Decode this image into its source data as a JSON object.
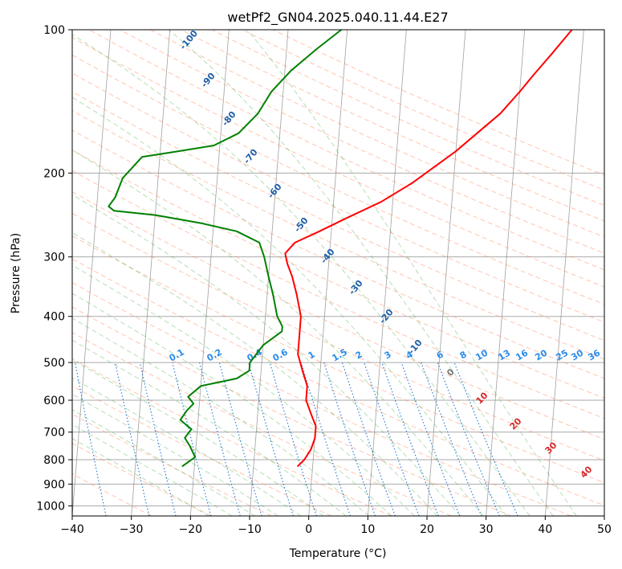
{
  "chart_data": {
    "type": "line",
    "title": "wetPf2_GN04.2025.040.11.44.E27",
    "xlabel": "Temperature (°C)",
    "ylabel": "Pressure (hPa)",
    "xlim": [
      -40,
      50
    ],
    "ylim": [
      1050,
      100
    ],
    "y_scale": "log",
    "x_ticks": [
      -40,
      -30,
      -20,
      -10,
      0,
      10,
      20,
      30,
      40,
      50
    ],
    "x_tick_labels": [
      "−40",
      "−30",
      "−20",
      "−10",
      "0",
      "10",
      "20",
      "30",
      "40",
      "50"
    ],
    "y_ticks": [
      100,
      200,
      300,
      400,
      500,
      600,
      700,
      800,
      900,
      1000
    ],
    "y_tick_labels": [
      "100",
      "200",
      "300",
      "400",
      "500",
      "600",
      "700",
      "800",
      "900",
      "1000"
    ],
    "grid": true,
    "series": [
      {
        "color": "#ff0000",
        "points": [
          [
            -2.5,
            825
          ],
          [
            -1.5,
            800
          ],
          [
            -0.5,
            760
          ],
          [
            0,
            720
          ],
          [
            0,
            680
          ],
          [
            -1,
            640
          ],
          [
            -2,
            600
          ],
          [
            -2,
            560
          ],
          [
            -3,
            520
          ],
          [
            -4,
            480
          ],
          [
            -4,
            440
          ],
          [
            -4,
            400
          ],
          [
            -5,
            360
          ],
          [
            -6,
            330
          ],
          [
            -7,
            310
          ],
          [
            -7.5,
            295
          ],
          [
            -6,
            280
          ],
          [
            -2,
            265
          ],
          [
            2,
            250
          ],
          [
            8,
            230
          ],
          [
            13,
            210
          ],
          [
            20,
            180
          ],
          [
            27,
            150
          ],
          [
            30,
            135
          ],
          [
            32,
            125
          ],
          [
            35,
            112
          ],
          [
            38,
            100
          ]
        ]
      },
      {
        "color": "#008000",
        "points": [
          [
            -22,
            825
          ],
          [
            -20,
            790
          ],
          [
            -21,
            750
          ],
          [
            -22,
            720
          ],
          [
            -21,
            690
          ],
          [
            -23,
            660
          ],
          [
            -22,
            630
          ],
          [
            -21,
            610
          ],
          [
            -22,
            590
          ],
          [
            -20,
            560
          ],
          [
            -17,
            550
          ],
          [
            -14,
            540
          ],
          [
            -12,
            520
          ],
          [
            -12,
            500
          ],
          [
            -10,
            460
          ],
          [
            -7,
            430
          ],
          [
            -7,
            420
          ],
          [
            -8,
            400
          ],
          [
            -9,
            360
          ],
          [
            -10,
            330
          ],
          [
            -11,
            300
          ],
          [
            -12,
            280
          ],
          [
            -16,
            265
          ],
          [
            -22,
            255
          ],
          [
            -30,
            245
          ],
          [
            -37,
            240
          ],
          [
            -38,
            235
          ],
          [
            -37,
            225
          ],
          [
            -36,
            205
          ],
          [
            -33,
            185
          ],
          [
            -27,
            180
          ],
          [
            -21,
            175
          ],
          [
            -17,
            165
          ],
          [
            -14,
            150
          ],
          [
            -12,
            135
          ],
          [
            -9,
            122
          ],
          [
            -5,
            110
          ],
          [
            -1,
            100
          ]
        ]
      }
    ],
    "mixing_ratio_labels": [
      "0.1",
      "0.2",
      "0.4",
      "0.6",
      "1",
      "1.5",
      "2",
      "3",
      "4",
      "6",
      "8",
      "10",
      "13",
      "16",
      "20",
      "25",
      "30",
      "36"
    ],
    "dry_adiabat_labels": [
      "-100",
      "-90",
      "-80",
      "-70",
      "-60",
      "-50",
      "-40",
      "-30",
      "-20",
      "-10"
    ],
    "moist_adiabat_labels": [
      "0",
      "10",
      "20",
      "30",
      "40"
    ],
    "colors": {
      "temperature": "#ff0000",
      "dewpoint": "#008000",
      "dry_adiabat": "#ff7f50",
      "moist_adiabat": "#2ca02c",
      "mixing_ratio": "#1f77d4",
      "isotherm": "#808080",
      "isobar": "#aaaaaa",
      "dry_label": "#1f5fa8",
      "moist_label": "#d62728",
      "mixing_label": "#2a8ce8"
    }
  }
}
